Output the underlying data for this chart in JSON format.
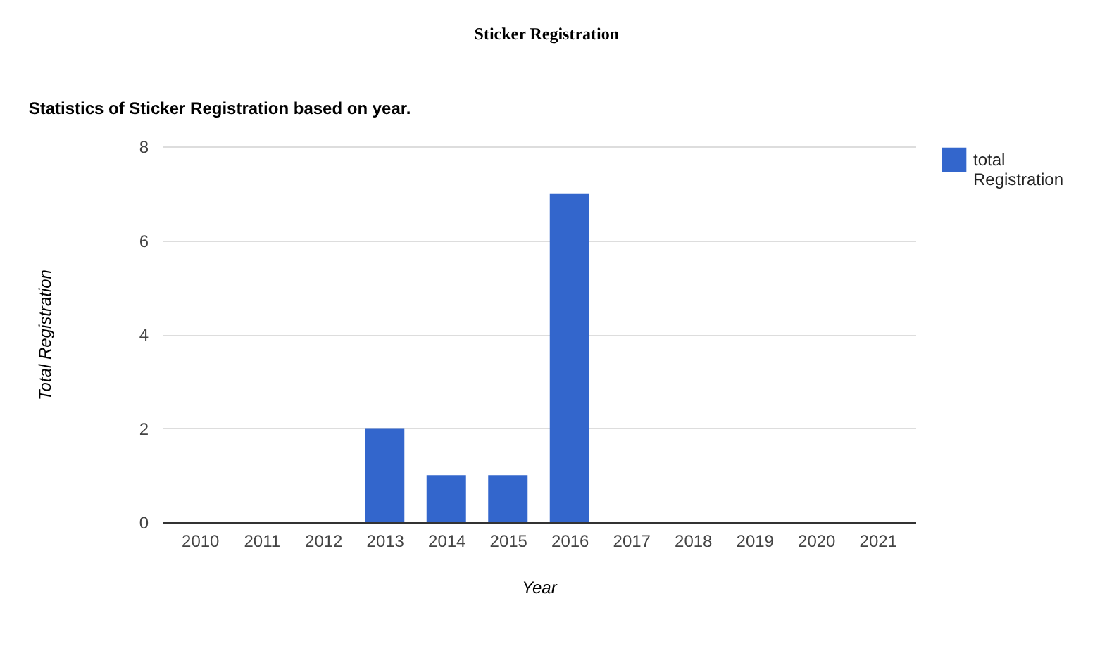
{
  "chart_data": {
    "type": "bar",
    "title": "Sticker Registration",
    "subtitle": "Statistics of Sticker Registration based on year.",
    "xlabel": "Year",
    "ylabel": "Total Registration",
    "categories": [
      "2010",
      "2011",
      "2012",
      "2013",
      "2014",
      "2015",
      "2016",
      "2017",
      "2018",
      "2019",
      "2020",
      "2021"
    ],
    "series": [
      {
        "name": "total Registration",
        "color": "#3366cc",
        "values": [
          0,
          0,
          0,
          2,
          1,
          1,
          7,
          0,
          0,
          0,
          0,
          0
        ]
      }
    ],
    "ylim": [
      0,
      8
    ],
    "yticks": [
      0,
      2,
      4,
      6,
      8
    ],
    "grid": "y",
    "legend": "top right"
  }
}
